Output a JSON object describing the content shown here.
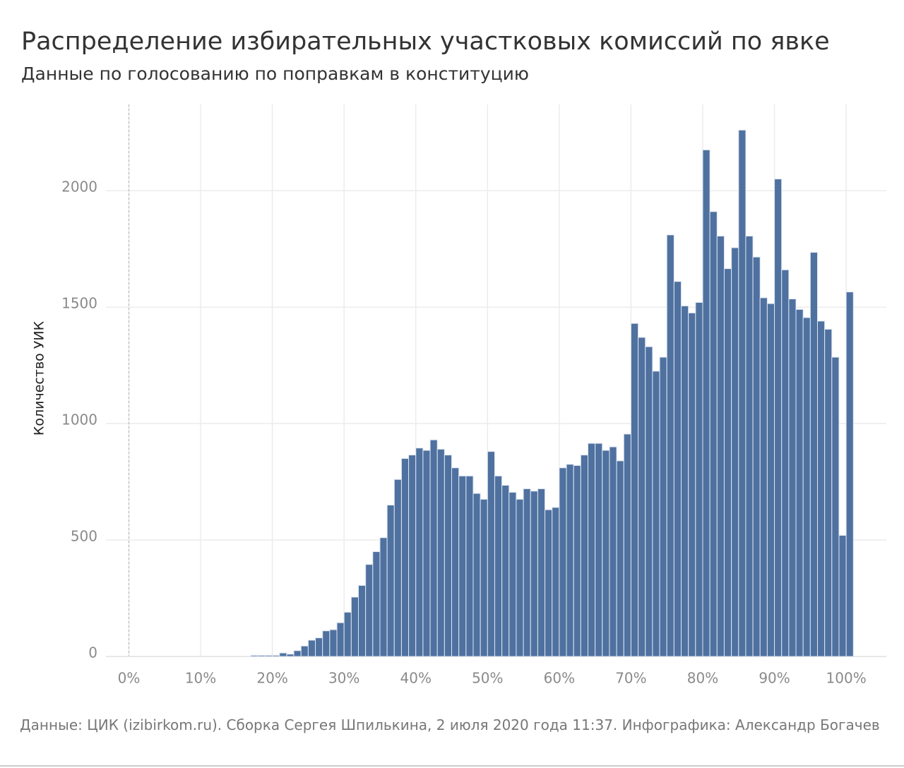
{
  "chart_data": {
    "type": "histogram",
    "title": "Распределение избирательных участковых комиссий по явке",
    "subtitle": "Данные по голосованию по поправкам в конституцию",
    "y_label": "Количество УИК",
    "source": "Данные: ЦИК (izibirkom.ru). Сборка Сергея Шпилькина, 2 июля 2020 года 11:37. Инфографика: Александр Богачев",
    "bins": [
      17,
      18,
      19,
      20,
      21,
      22,
      23,
      24,
      25,
      26,
      27,
      28,
      29,
      30,
      31,
      32,
      33,
      34,
      35,
      36,
      37,
      38,
      39,
      40,
      41,
      42,
      43,
      44,
      45,
      46,
      47,
      48,
      49,
      50,
      51,
      52,
      53,
      54,
      55,
      56,
      57,
      58,
      59,
      60,
      61,
      62,
      63,
      64,
      65,
      66,
      67,
      68,
      69,
      70,
      71,
      72,
      73,
      74,
      75,
      76,
      77,
      78,
      79,
      80,
      81,
      82,
      83,
      84,
      85,
      86,
      87,
      88,
      89,
      90,
      91,
      92,
      93,
      94,
      95,
      96,
      97,
      98,
      99,
      100,
      101
    ],
    "values": [
      5,
      5,
      5,
      5,
      15,
      10,
      25,
      45,
      70,
      80,
      110,
      115,
      145,
      190,
      255,
      305,
      395,
      450,
      510,
      650,
      760,
      850,
      865,
      895,
      885,
      930,
      890,
      865,
      810,
      775,
      775,
      700,
      675,
      880,
      775,
      735,
      705,
      675,
      720,
      710,
      720,
      630,
      640,
      810,
      825,
      820,
      865,
      915,
      915,
      885,
      900,
      840,
      955,
      1430,
      1370,
      1330,
      1225,
      1285,
      1810,
      1610,
      1505,
      1475,
      1520,
      2175,
      1910,
      1805,
      1665,
      1755,
      2260,
      1805,
      1715,
      1540,
      1515,
      2050,
      1660,
      1535,
      1490,
      1455,
      1735,
      1440,
      1405,
      1285,
      520,
      1565
    ],
    "color": "#4f71a0",
    "xlim": [
      -3.2,
      105.6
    ],
    "xticks": [
      {
        "value": 0,
        "label": "0%"
      },
      {
        "value": 10,
        "label": "10%"
      },
      {
        "value": 20,
        "label": "20%"
      },
      {
        "value": 30,
        "label": "30%"
      },
      {
        "value": 40,
        "label": "40%"
      },
      {
        "value": 50,
        "label": "50%"
      },
      {
        "value": 60,
        "label": "60%"
      },
      {
        "value": 70,
        "label": "70%"
      },
      {
        "value": 80,
        "label": "80%"
      },
      {
        "value": 90,
        "label": "90%"
      },
      {
        "value": 100,
        "label": "100%"
      }
    ],
    "ylim": [
      0,
      2370
    ],
    "yticks": [
      0,
      500,
      1000,
      1500,
      2000
    ],
    "grid": true
  }
}
